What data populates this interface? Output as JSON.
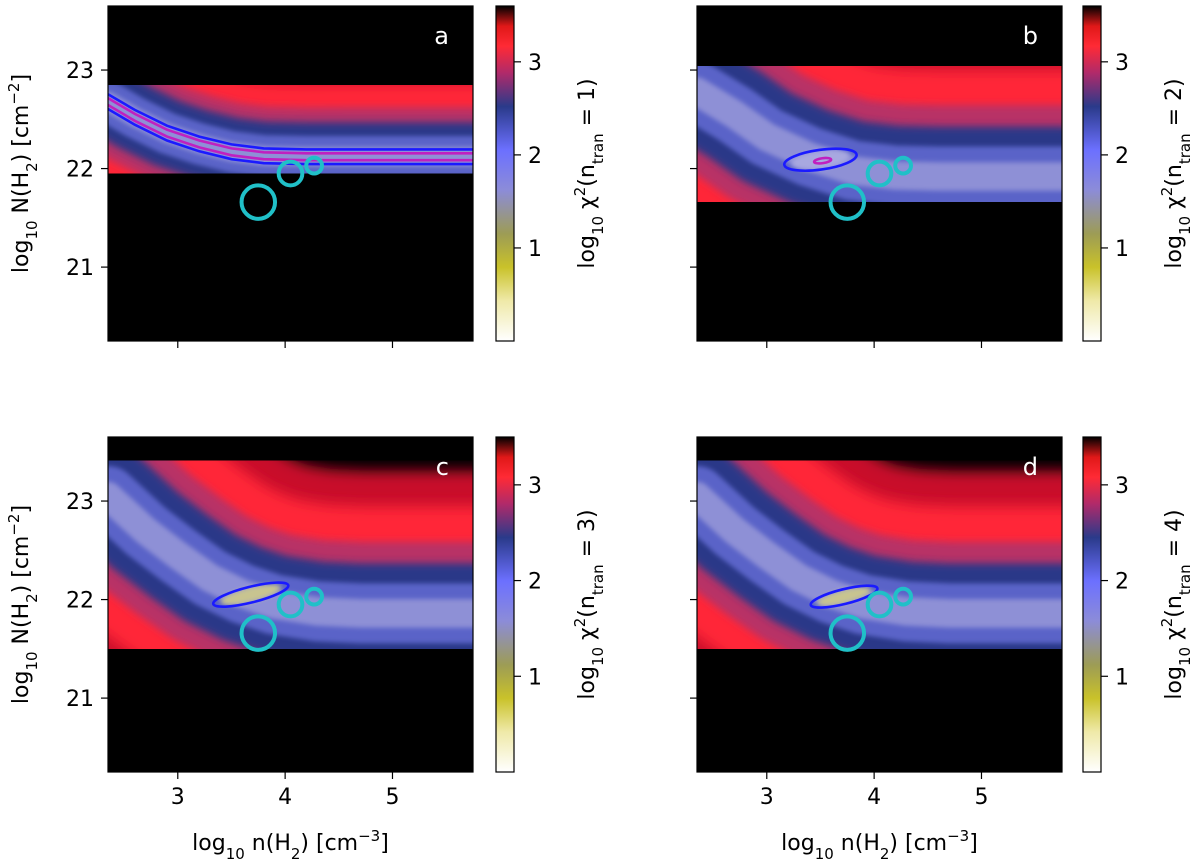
{
  "chart_data": [
    {
      "type": "heatmap",
      "panel_label": "a",
      "n_tran": 1,
      "xlabel_parts": [
        "log",
        "10",
        " n(H",
        "2",
        ") [cm",
        "−3",
        "]"
      ],
      "ylabel_parts": [
        "log",
        "10",
        " N(H",
        "2",
        ") [cm",
        "−2",
        "]"
      ],
      "colorbar_label_parts": [
        "log",
        "10",
        " χ",
        "2",
        "(n",
        "tran",
        " = 1)"
      ],
      "xlim": [
        2.35,
        5.75
      ],
      "ylim": [
        20.25,
        23.65
      ],
      "xticks": [
        3,
        4,
        5
      ],
      "yticks": [
        21,
        22,
        23
      ],
      "colorbar_range": [
        0.0,
        3.6
      ],
      "colorbar_ticks": [
        1,
        2,
        3
      ],
      "valley_curve": [
        [
          2.35,
          22.68
        ],
        [
          2.6,
          22.52
        ],
        [
          2.9,
          22.36
        ],
        [
          3.2,
          22.25
        ],
        [
          3.5,
          22.17
        ],
        [
          3.8,
          22.13
        ],
        [
          4.2,
          22.12
        ],
        [
          4.6,
          22.12
        ],
        [
          5.0,
          22.12
        ],
        [
          5.75,
          22.12
        ]
      ],
      "contours": [
        {
          "color": "#1a1aff",
          "offsets": [
            -0.075,
            0.075
          ]
        },
        {
          "color": "#c020c0",
          "offsets": [
            -0.035,
            0.035
          ]
        }
      ],
      "circles": [
        {
          "x": 3.75,
          "y": 21.66,
          "r": 0.17
        },
        {
          "x": 4.05,
          "y": 21.95,
          "r": 0.12
        },
        {
          "x": 4.27,
          "y": 22.03,
          "r": 0.08
        }
      ],
      "circle_color": "#20c0c8"
    },
    {
      "type": "heatmap",
      "panel_label": "b",
      "n_tran": 2,
      "xlabel_parts": [
        "log",
        "10",
        " n(H",
        "2",
        ") [cm",
        "−3",
        "]"
      ],
      "ylabel_parts": [
        "log",
        "10",
        " N(H",
        "2",
        ") [cm",
        "−2",
        "]"
      ],
      "colorbar_label_parts": [
        "log",
        "10",
        " χ",
        "2",
        "(n",
        "tran",
        " = 2)"
      ],
      "xlim": [
        2.35,
        5.75
      ],
      "ylim": [
        20.25,
        23.65
      ],
      "xticks": [
        3,
        4,
        5
      ],
      "yticks": [
        21,
        22,
        23
      ],
      "colorbar_range": [
        0.0,
        3.6
      ],
      "colorbar_ticks": [
        1,
        2,
        3
      ],
      "valley_curve": [
        [
          2.35,
          22.78
        ],
        [
          2.7,
          22.55
        ],
        [
          3.0,
          22.32
        ],
        [
          3.4,
          22.12
        ],
        [
          3.8,
          21.98
        ],
        [
          4.2,
          21.93
        ],
        [
          4.6,
          21.92
        ],
        [
          5.0,
          21.92
        ],
        [
          5.75,
          21.92
        ]
      ],
      "contours": [
        {
          "color": "#1a1aff",
          "ellipse": {
            "x": 3.5,
            "y": 22.09,
            "rx": 0.34,
            "ry": 0.1,
            "angle": -8
          }
        },
        {
          "color": "#c020c0",
          "ellipse": {
            "x": 3.52,
            "y": 22.08,
            "rx": 0.08,
            "ry": 0.025,
            "angle": -8
          }
        }
      ],
      "circles": [
        {
          "x": 3.75,
          "y": 21.66,
          "r": 0.17
        },
        {
          "x": 4.05,
          "y": 21.95,
          "r": 0.12
        },
        {
          "x": 4.27,
          "y": 22.03,
          "r": 0.08
        }
      ],
      "circle_color": "#20c0c8"
    },
    {
      "type": "heatmap",
      "panel_label": "c",
      "n_tran": 3,
      "xlabel_parts": [
        "log",
        "10",
        " n(H",
        "2",
        ") [cm",
        "−3",
        "]"
      ],
      "ylabel_parts": [
        "log",
        "10",
        " N(H",
        "2",
        ") [cm",
        "−2",
        "]"
      ],
      "colorbar_label_parts": [
        "log",
        "10",
        " χ",
        "2",
        "(n",
        "tran",
        " = 3)"
      ],
      "xlim": [
        2.35,
        5.75
      ],
      "ylim": [
        20.25,
        23.65
      ],
      "xticks": [
        3,
        4,
        5
      ],
      "yticks": [
        21,
        22,
        23
      ],
      "colorbar_range": [
        0.0,
        3.5
      ],
      "colorbar_ticks": [
        1,
        2,
        3
      ],
      "valley_curve": [
        [
          2.35,
          23.05
        ],
        [
          2.7,
          22.7
        ],
        [
          3.0,
          22.45
        ],
        [
          3.3,
          22.22
        ],
        [
          3.6,
          22.06
        ],
        [
          3.9,
          21.95
        ],
        [
          4.3,
          21.88
        ],
        [
          4.7,
          21.86
        ],
        [
          5.1,
          21.86
        ],
        [
          5.75,
          21.86
        ]
      ],
      "contours": [
        {
          "color": "#1a1aff",
          "ellipse": {
            "x": 3.68,
            "y": 22.05,
            "rx": 0.36,
            "ry": 0.08,
            "angle": -14
          }
        }
      ],
      "circles": [
        {
          "x": 3.75,
          "y": 21.66,
          "r": 0.17
        },
        {
          "x": 4.05,
          "y": 21.95,
          "r": 0.12
        },
        {
          "x": 4.27,
          "y": 22.03,
          "r": 0.08
        }
      ],
      "circle_color": "#20c0c8"
    },
    {
      "type": "heatmap",
      "panel_label": "d",
      "n_tran": 4,
      "xlabel_parts": [
        "log",
        "10",
        " n(H",
        "2",
        ") [cm",
        "−3",
        "]"
      ],
      "ylabel_parts": [
        "log",
        "10",
        " N(H",
        "2",
        ") [cm",
        "−2",
        "]"
      ],
      "colorbar_label_parts": [
        "log",
        "10",
        " χ",
        "2",
        "(n",
        "tran",
        " = 4)"
      ],
      "xlim": [
        2.35,
        5.75
      ],
      "ylim": [
        20.25,
        23.65
      ],
      "xticks": [
        3,
        4,
        5
      ],
      "yticks": [
        21,
        22,
        23
      ],
      "colorbar_range": [
        0.0,
        3.5
      ],
      "colorbar_ticks": [
        1,
        2,
        3
      ],
      "valley_curve": [
        [
          2.35,
          23.05
        ],
        [
          2.7,
          22.7
        ],
        [
          3.0,
          22.45
        ],
        [
          3.3,
          22.22
        ],
        [
          3.6,
          22.06
        ],
        [
          3.9,
          21.95
        ],
        [
          4.3,
          21.88
        ],
        [
          4.7,
          21.86
        ],
        [
          5.1,
          21.86
        ],
        [
          5.75,
          21.86
        ]
      ],
      "contours": [
        {
          "color": "#1a1aff",
          "ellipse": {
            "x": 3.72,
            "y": 22.03,
            "rx": 0.32,
            "ry": 0.075,
            "angle": -14
          }
        }
      ],
      "circles": [
        {
          "x": 3.75,
          "y": 21.66,
          "r": 0.17
        },
        {
          "x": 4.05,
          "y": 21.95,
          "r": 0.12
        },
        {
          "x": 4.27,
          "y": 22.03,
          "r": 0.08
        }
      ],
      "circle_color": "#20c0c8"
    }
  ]
}
